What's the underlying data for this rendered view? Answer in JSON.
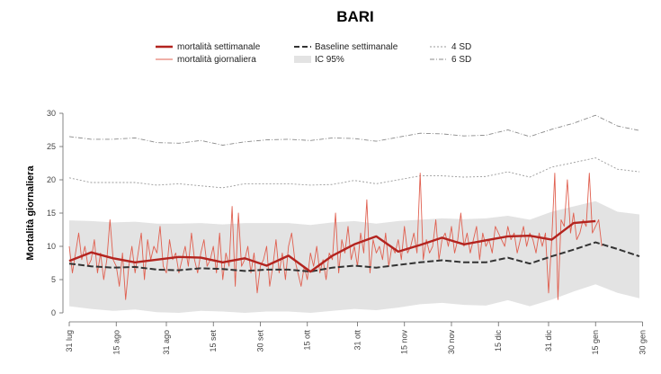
{
  "chart_data": {
    "type": "line",
    "title": "BARI",
    "xlabel": "",
    "ylabel": "Mortalità giornaliera",
    "ylim": [
      0,
      30
    ],
    "yticks": [
      0,
      5,
      10,
      15,
      20,
      25,
      30
    ],
    "x_ticks": [
      "31 lug",
      "15 ago",
      "31 ago",
      "15 set",
      "30 set",
      "15 ott",
      "31 ott",
      "15 nov",
      "30 nov",
      "15 dic",
      "31 dic",
      "15 gen",
      "30 gen"
    ],
    "legend": {
      "placement": "top",
      "entries": [
        {
          "label": "mortalità settimanale",
          "style": "thick-solid",
          "color": "#b3241f"
        },
        {
          "label": "Baseline settimanale",
          "style": "dashed",
          "color": "#333333"
        },
        {
          "label": "4 SD",
          "style": "dotted",
          "color": "#9a9a9a"
        },
        {
          "label": "mortalità giornaliera",
          "style": "thin-solid",
          "color": "#e06050"
        },
        {
          "label": "IC 95%",
          "style": "band",
          "color": "#e3e3e3"
        },
        {
          "label": "6 SD",
          "style": "dashdot",
          "color": "#8a8a8a"
        }
      ]
    },
    "series": [
      {
        "name": "mortalità settimanale",
        "x": [
          0,
          7,
          14,
          21,
          28,
          35,
          42,
          49,
          56,
          63,
          70,
          77,
          84,
          91,
          98,
          105,
          112,
          119,
          126,
          133,
          140,
          147,
          154,
          161,
          168
        ],
        "values": [
          7.8,
          9.1,
          8.2,
          7.6,
          8.0,
          8.4,
          8.3,
          7.6,
          8.2,
          7.1,
          8.6,
          6.2,
          8.6,
          10.3,
          11.5,
          9.2,
          10.2,
          11.3,
          10.3,
          10.9,
          11.5,
          11.6,
          11.0,
          13.5,
          13.8
        ]
      },
      {
        "name": "Baseline settimanale",
        "x": [
          0,
          7,
          14,
          21,
          28,
          35,
          42,
          49,
          56,
          63,
          70,
          77,
          84,
          91,
          98,
          105,
          112,
          119,
          126,
          133,
          140,
          147,
          154,
          161,
          168,
          175,
          182
        ],
        "values": [
          7.4,
          7.0,
          6.8,
          6.9,
          6.5,
          6.4,
          6.7,
          6.6,
          6.3,
          6.5,
          6.5,
          6.2,
          6.8,
          7.1,
          6.8,
          7.2,
          7.6,
          7.9,
          7.6,
          7.6,
          8.3,
          7.4,
          8.5,
          9.5,
          10.6,
          9.6,
          8.5
        ]
      },
      {
        "name": "4 SD",
        "x": [
          0,
          7,
          14,
          21,
          28,
          35,
          42,
          49,
          56,
          63,
          70,
          77,
          84,
          91,
          98,
          105,
          112,
          119,
          126,
          133,
          140,
          147,
          154,
          161,
          168,
          175,
          182
        ],
        "values": [
          20.3,
          19.6,
          19.6,
          19.6,
          19.2,
          19.4,
          19.1,
          18.8,
          19.4,
          19.4,
          19.4,
          19.2,
          19.3,
          19.9,
          19.4,
          20.0,
          20.6,
          20.6,
          20.4,
          20.5,
          21.2,
          20.4,
          21.9,
          22.6,
          23.3,
          21.6,
          21.2
        ]
      },
      {
        "name": "6 SD",
        "x": [
          0,
          7,
          14,
          21,
          28,
          35,
          42,
          49,
          56,
          63,
          70,
          77,
          84,
          91,
          98,
          105,
          112,
          119,
          126,
          133,
          140,
          147,
          154,
          161,
          168,
          175,
          182
        ],
        "values": [
          26.5,
          26.1,
          26.1,
          26.3,
          25.6,
          25.5,
          25.9,
          25.2,
          25.7,
          26.0,
          26.1,
          25.9,
          26.3,
          26.2,
          25.8,
          26.4,
          27.0,
          26.9,
          26.6,
          26.7,
          27.5,
          26.5,
          27.6,
          28.5,
          29.7,
          28.1,
          27.4
        ]
      },
      {
        "name": "IC 95% upper",
        "x": [
          0,
          7,
          14,
          21,
          28,
          35,
          42,
          49,
          56,
          63,
          70,
          77,
          84,
          91,
          98,
          105,
          112,
          119,
          126,
          133,
          140,
          147,
          154,
          161,
          168,
          175,
          182
        ],
        "values": [
          13.9,
          13.8,
          13.6,
          13.7,
          13.4,
          13.4,
          13.5,
          13.3,
          13.5,
          13.5,
          13.5,
          13.2,
          13.6,
          13.8,
          13.4,
          13.8,
          14.0,
          14.2,
          14.1,
          14.2,
          14.6,
          14.0,
          15.2,
          16.0,
          16.8,
          15.2,
          14.8
        ]
      },
      {
        "name": "IC 95% lower",
        "x": [
          0,
          7,
          14,
          21,
          28,
          35,
          42,
          49,
          56,
          63,
          70,
          77,
          84,
          91,
          98,
          105,
          112,
          119,
          126,
          133,
          140,
          147,
          154,
          161,
          168,
          175,
          182
        ],
        "values": [
          1.0,
          0.6,
          0.3,
          0.5,
          0.1,
          0.0,
          0.3,
          0.2,
          0.0,
          0.2,
          0.2,
          0.0,
          0.3,
          0.6,
          0.4,
          0.8,
          1.3,
          1.5,
          1.2,
          1.1,
          1.9,
          1.0,
          2.0,
          3.2,
          4.3,
          3.0,
          2.2
        ]
      },
      {
        "name": "mortalità giornaliera",
        "x": [
          0,
          1,
          2,
          3,
          4,
          5,
          6,
          7,
          8,
          9,
          10,
          11,
          12,
          13,
          14,
          15,
          16,
          17,
          18,
          19,
          20,
          21,
          22,
          23,
          24,
          25,
          26,
          27,
          28,
          29,
          30,
          31,
          32,
          33,
          34,
          35,
          36,
          37,
          38,
          39,
          40,
          41,
          42,
          43,
          44,
          45,
          46,
          47,
          48,
          49,
          50,
          51,
          52,
          53,
          54,
          55,
          56,
          57,
          58,
          59,
          60,
          61,
          62,
          63,
          64,
          65,
          66,
          67,
          68,
          69,
          70,
          71,
          72,
          73,
          74,
          75,
          76,
          77,
          78,
          79,
          80,
          81,
          82,
          83,
          84,
          85,
          86,
          87,
          88,
          89,
          90,
          91,
          92,
          93,
          94,
          95,
          96,
          97,
          98,
          99,
          100,
          101,
          102,
          103,
          104,
          105,
          106,
          107,
          108,
          109,
          110,
          111,
          112,
          113,
          114,
          115,
          116,
          117,
          118,
          119,
          120,
          121,
          122,
          123,
          124,
          125,
          126,
          127,
          128,
          129,
          130,
          131,
          132,
          133,
          134,
          135,
          136,
          137,
          138,
          139,
          140,
          141,
          142,
          143,
          144,
          145,
          146,
          147,
          148,
          149,
          150,
          151,
          152,
          153,
          154,
          155,
          156,
          157,
          158,
          159,
          160,
          161,
          162,
          163,
          164,
          165,
          166,
          167,
          168,
          169,
          170
        ],
        "values": [
          10,
          6,
          9,
          12,
          8,
          10,
          7,
          8,
          11,
          6,
          9,
          5,
          8,
          14,
          8,
          7,
          4,
          9,
          2,
          7,
          10,
          6,
          9,
          12,
          5,
          11,
          8,
          10,
          9,
          13,
          7,
          6,
          11,
          8,
          9,
          6,
          8,
          10,
          7,
          12,
          8,
          6,
          9,
          11,
          7,
          8,
          10,
          6,
          12,
          5,
          9,
          7,
          16,
          4,
          15,
          7,
          8,
          10,
          6,
          9,
          3,
          7,
          8,
          10,
          4,
          7,
          11,
          6,
          9,
          5,
          10,
          12,
          8,
          6,
          4,
          7,
          5,
          9,
          7,
          10,
          6,
          8,
          5,
          9,
          8,
          15,
          6,
          11,
          9,
          13,
          8,
          10,
          7,
          12,
          9,
          17,
          6,
          11,
          9,
          10,
          8,
          12,
          7,
          10,
          9,
          11,
          8,
          13,
          9,
          10,
          12,
          9,
          21,
          8,
          11,
          9,
          10,
          14,
          8,
          11,
          12,
          10,
          13,
          9,
          11,
          15,
          10,
          12,
          9,
          11,
          13,
          8,
          12,
          10,
          11,
          9,
          13,
          12,
          11,
          10,
          13,
          11,
          12,
          9,
          11,
          13,
          10,
          12,
          11,
          9,
          12,
          10,
          12,
          3,
          11,
          21,
          2,
          14,
          13,
          20,
          12,
          15,
          11,
          12,
          14,
          13,
          21,
          12,
          13,
          14,
          10
        ]
      }
    ]
  }
}
